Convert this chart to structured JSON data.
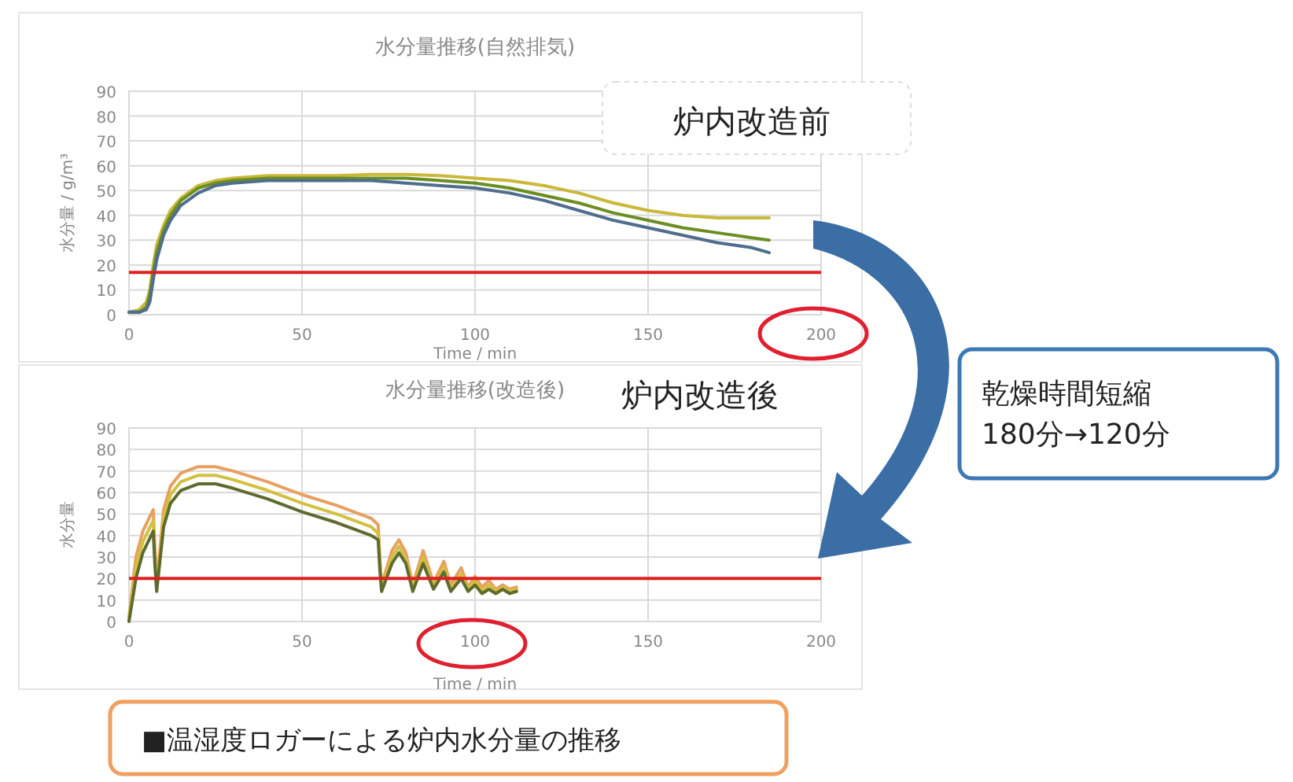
{
  "chart_data": [
    {
      "type": "line",
      "title": "水分量推移(自然排気)",
      "xlabel": "Time / min",
      "ylabel": "水分量 / g/m³",
      "xlim": [
        0,
        200
      ],
      "xticks": [
        0,
        50,
        100,
        150,
        200
      ],
      "ylim": [
        0,
        90
      ],
      "yticks": [
        0,
        10,
        20,
        30,
        40,
        50,
        60,
        70,
        80,
        90
      ],
      "grid": true,
      "x": [
        0,
        3,
        5,
        6,
        7,
        8,
        10,
        12,
        15,
        20,
        25,
        30,
        40,
        50,
        60,
        70,
        80,
        90,
        100,
        110,
        120,
        130,
        140,
        150,
        160,
        170,
        180,
        185
      ],
      "series": [
        {
          "color": "#c9b83a",
          "values": [
            1,
            2,
            5,
            10,
            20,
            28,
            36,
            42,
            47,
            52,
            54,
            55,
            56,
            56,
            56,
            56.5,
            56.5,
            56,
            55,
            54,
            52,
            49,
            45,
            42,
            40,
            39,
            39,
            39
          ]
        },
        {
          "color": "#6b8e23",
          "values": [
            1,
            1,
            3,
            8,
            17,
            25,
            34,
            40,
            46,
            51,
            53,
            54,
            55,
            55,
            55,
            55,
            55,
            54,
            53,
            51,
            48,
            45,
            41,
            38,
            35,
            33,
            31,
            30
          ]
        },
        {
          "color": "#4f6d8f",
          "values": [
            1,
            1,
            2,
            5,
            14,
            22,
            32,
            38,
            44,
            49,
            52,
            53,
            54,
            54,
            54,
            54,
            53,
            52,
            51,
            49,
            46,
            42,
            38,
            35,
            32,
            29,
            27,
            25
          ]
        }
      ],
      "ref_lines": [
        {
          "axis": "y",
          "value": 17,
          "color": "#e02020"
        }
      ],
      "annotations": [
        "炉内改造前",
        "乾燥時間短縮\n180分→120分"
      ]
    },
    {
      "type": "line",
      "title": "水分量推移(改造後)",
      "xlabel": "Time / min",
      "ylabel": "水分量",
      "xlim": [
        0,
        200
      ],
      "xticks": [
        0,
        50,
        100,
        150,
        200
      ],
      "ylim": [
        0,
        90
      ],
      "yticks": [
        0,
        10,
        20,
        30,
        40,
        50,
        60,
        70,
        80,
        90
      ],
      "grid": true,
      "x": [
        0,
        2,
        4,
        7,
        7.5,
        8,
        10,
        12,
        15,
        20,
        25,
        30,
        40,
        45,
        50,
        60,
        70,
        72,
        72.5,
        73,
        76,
        78,
        80,
        82,
        85,
        88,
        91,
        93,
        96,
        98,
        100,
        102,
        104,
        106,
        108,
        110,
        112
      ],
      "series": [
        {
          "color": "#e8a060",
          "values": [
            2,
            30,
            42,
            52,
            35,
            17,
            52,
            63,
            69,
            72,
            72,
            70,
            65,
            62,
            59,
            54,
            48,
            45,
            30,
            17,
            33,
            38,
            32,
            17,
            33,
            18,
            28,
            17,
            25,
            16,
            21,
            16,
            19,
            15,
            17,
            15,
            16
          ]
        },
        {
          "color": "#d4c040",
          "values": [
            1,
            25,
            37,
            47,
            30,
            15,
            48,
            59,
            65,
            68,
            68,
            66,
            61,
            58,
            55,
            50,
            44,
            41,
            27,
            15,
            30,
            35,
            29,
            15,
            30,
            16,
            25,
            15,
            22,
            15,
            19,
            14,
            17,
            14,
            16,
            14,
            15
          ]
        },
        {
          "color": "#5e6b2e",
          "values": [
            0,
            20,
            32,
            42,
            26,
            14,
            44,
            55,
            61,
            64,
            64,
            62,
            57,
            54,
            51,
            46,
            40,
            38,
            24,
            14,
            27,
            32,
            27,
            14,
            27,
            15,
            23,
            14,
            20,
            14,
            17,
            13,
            15,
            13,
            15,
            13,
            14
          ]
        }
      ],
      "ref_lines": [
        {
          "axis": "y",
          "value": 20,
          "color": "#e02020"
        }
      ],
      "annotations": [
        "炉内改造後",
        "■温湿度ロガーによる炉内水分量の推移"
      ]
    }
  ]
}
